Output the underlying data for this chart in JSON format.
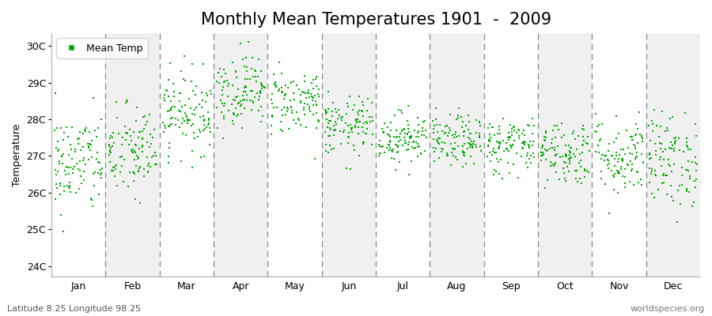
{
  "title": "Monthly Mean Temperatures 1901  -  2009",
  "ylabel": "Temperature",
  "xlabel_months": [
    "Jan",
    "Feb",
    "Mar",
    "Apr",
    "May",
    "Jun",
    "Jul",
    "Aug",
    "Sep",
    "Oct",
    "Nov",
    "Dec"
  ],
  "ytick_labels": [
    "24C",
    "25C",
    "26C",
    "27C",
    "28C",
    "29C",
    "30C"
  ],
  "ytick_values": [
    24,
    25,
    26,
    27,
    28,
    29,
    30
  ],
  "ylim": [
    23.7,
    30.35
  ],
  "marker_color": "#00AA00",
  "marker_size": 2.5,
  "background_color": "#ffffff",
  "band_color_odd": "#f0f0f0",
  "band_color_even": "#ffffff",
  "legend_label": "Mean Temp",
  "bottom_left": "Latitude 8.25 Longitude 98.25",
  "bottom_right": "worldspecies.org",
  "title_fontsize": 15,
  "label_fontsize": 9,
  "tick_fontsize": 9,
  "monthly_means": [
    26.8,
    27.1,
    28.2,
    28.8,
    28.5,
    27.8,
    27.5,
    27.4,
    27.3,
    27.1,
    27.0,
    26.9
  ],
  "monthly_stds": [
    0.7,
    0.65,
    0.55,
    0.5,
    0.45,
    0.4,
    0.35,
    0.35,
    0.4,
    0.45,
    0.55,
    0.65
  ],
  "n_years": 109,
  "seed": 42,
  "dashes": [
    6,
    4
  ]
}
